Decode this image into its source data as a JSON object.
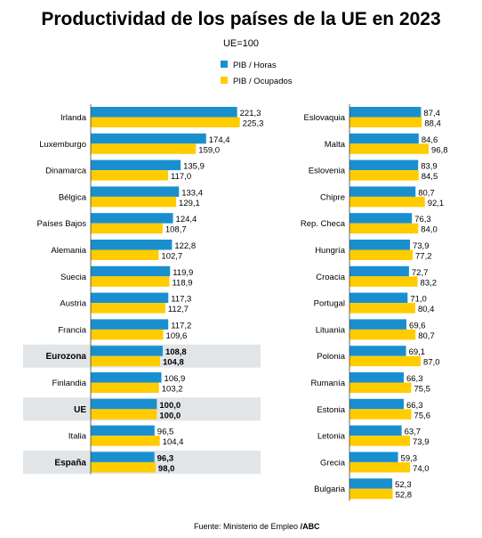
{
  "chart_data": {
    "type": "bar",
    "orientation": "horizontal",
    "title": "Productividad de los países de la UE en 2023",
    "subtitle": "UE=100",
    "source": "Fuente: Ministerio de Empleo ",
    "source_brand": "/ABC",
    "legend_position": "top",
    "series": [
      {
        "name": "PIB / Horas",
        "color": "#1a8fd0"
      },
      {
        "name": "PIB / Ocupados",
        "color": "#ffcc00"
      }
    ],
    "highlight_color": "#e2e5e8",
    "panels": [
      {
        "items": [
          {
            "country": "Irlanda",
            "horas": "221,3",
            "ocupados": "225,3"
          },
          {
            "country": "Luxemburgo",
            "horas": "174,4",
            "ocupados": "159,0"
          },
          {
            "country": "Dinamarca",
            "horas": "135,9",
            "ocupados": "117,0"
          },
          {
            "country": "Bélgica",
            "horas": "133,4",
            "ocupados": "129,1"
          },
          {
            "country": "Países Bajos",
            "horas": "124,4",
            "ocupados": "108,7"
          },
          {
            "country": "Alemania",
            "horas": "122,8",
            "ocupados": "102,7"
          },
          {
            "country": "Suecia",
            "horas": "119,9",
            "ocupados": "118,9"
          },
          {
            "country": "Austria",
            "horas": "117,3",
            "ocupados": "112,7"
          },
          {
            "country": "Francia",
            "horas": "117,2",
            "ocupados": "109,6"
          },
          {
            "country": "Eurozona",
            "horas": "108,8",
            "ocupados": "104,8",
            "highlight": true
          },
          {
            "country": "Finlandia",
            "horas": "106,9",
            "ocupados": "103,2"
          },
          {
            "country": "UE",
            "horas": "100,0",
            "ocupados": "100,0",
            "highlight": true
          },
          {
            "country": "Italia",
            "horas": "96,5",
            "ocupados": "104,4"
          },
          {
            "country": "España",
            "horas": "96,3",
            "ocupados": "98,0",
            "highlight": true
          }
        ]
      },
      {
        "items": [
          {
            "country": "Eslovaquia",
            "horas": "87,4",
            "ocupados": "88,4"
          },
          {
            "country": "Malta",
            "horas": "84,6",
            "ocupados": "96,8"
          },
          {
            "country": "Eslovenia",
            "horas": "83,9",
            "ocupados": "84,5"
          },
          {
            "country": "Chipre",
            "horas": "80,7",
            "ocupados": "92,1"
          },
          {
            "country": "Rep. Checa",
            "horas": "76,3",
            "ocupados": "84,0"
          },
          {
            "country": "Hungría",
            "horas": "73,9",
            "ocupados": "77,2"
          },
          {
            "country": "Croacia",
            "horas": "72,7",
            "ocupados": "83,2"
          },
          {
            "country": "Portugal",
            "horas": "71,0",
            "ocupados": "80,4"
          },
          {
            "country": "Lituania",
            "horas": "69,6",
            "ocupados": "80,7"
          },
          {
            "country": "Polonia",
            "horas": "69,1",
            "ocupados": "87,0"
          },
          {
            "country": "Rumanía",
            "horas": "66,3",
            "ocupados": "75,5"
          },
          {
            "country": "Estonia",
            "horas": "66,3",
            "ocupados": "75,6"
          },
          {
            "country": "Letonia",
            "horas": "63,7",
            "ocupados": "73,9"
          },
          {
            "country": "Grecia",
            "horas": "59,3",
            "ocupados": "74,0"
          },
          {
            "country": "Bulgaria",
            "horas": "52,3",
            "ocupados": "52,8"
          }
        ]
      }
    ]
  }
}
